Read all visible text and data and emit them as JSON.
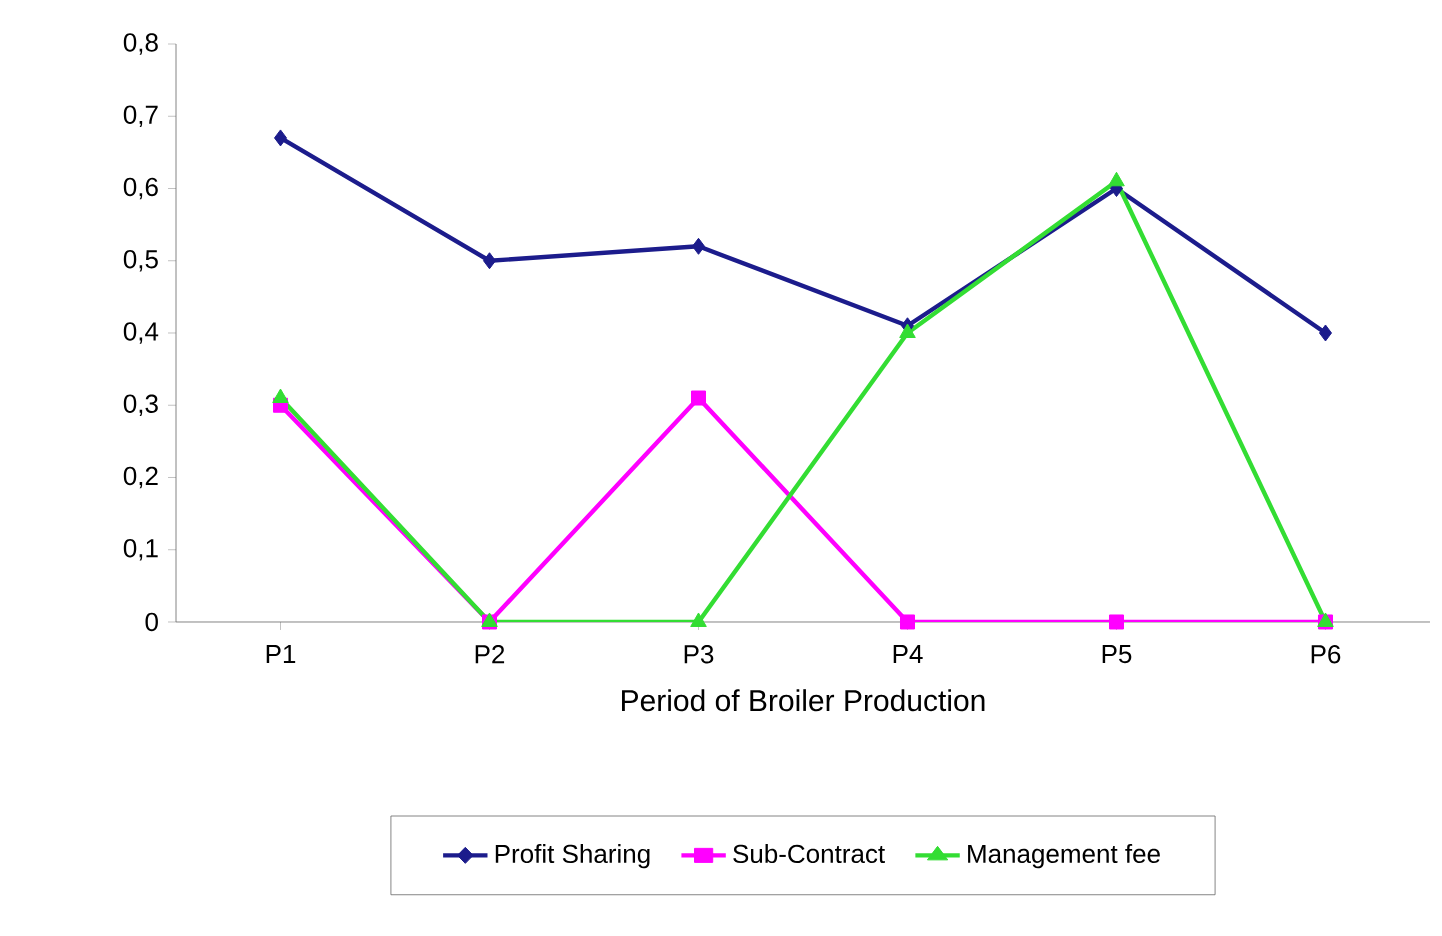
{
  "chart_data": {
    "type": "line",
    "xlabel": "Period of Broiler Production",
    "categories": [
      "P1",
      "P2",
      "P3",
      "P4",
      "P5",
      "P6"
    ],
    "series": [
      {
        "name": "Profit Sharing",
        "color": "#1c1c8c",
        "marker": "diamond",
        "values": [
          0.67,
          0.5,
          0.52,
          0.41,
          0.6,
          0.4
        ]
      },
      {
        "name": "Sub-Contract",
        "color": "#ff00ff",
        "marker": "square",
        "values": [
          0.3,
          0,
          0.31,
          0,
          0,
          0
        ]
      },
      {
        "name": "Management fee",
        "color": "#33dd33",
        "marker": "triangle",
        "values": [
          0.31,
          0,
          0,
          0.4,
          0.61,
          0
        ]
      }
    ],
    "ylim": [
      0,
      0.8
    ],
    "yticks": [
      0,
      {
        "value": 0.1,
        "label": "0,1"
      },
      {
        "value": 0.2,
        "label": "0,2"
      },
      {
        "value": 0.3,
        "label": "0,3"
      },
      {
        "value": 0.4,
        "label": "0,4"
      },
      {
        "value": 0.5,
        "label": "0,5"
      },
      {
        "value": 0.6,
        "label": "0,6"
      },
      {
        "value": 0.7,
        "label": "0,7"
      },
      {
        "value": 0.8,
        "label": "0,8"
      }
    ],
    "grid": false,
    "legend": "bottom",
    "line_style": "solid"
  }
}
